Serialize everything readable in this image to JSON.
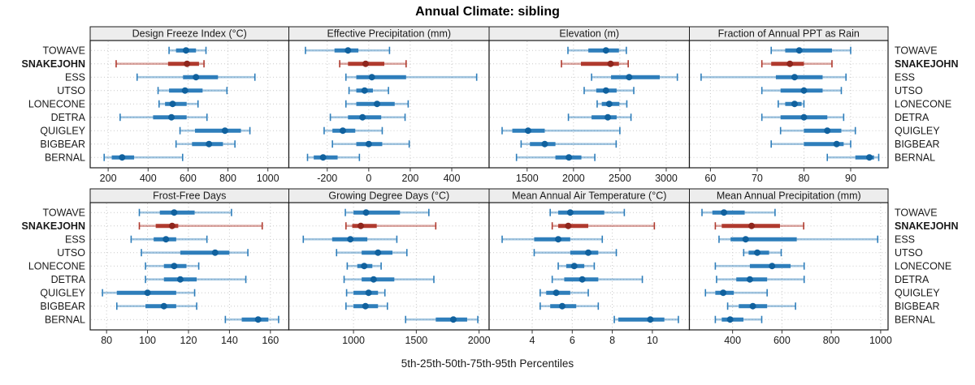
{
  "title": "Annual Climate: sibling",
  "caption": "5th-25th-50th-75th-95th Percentiles",
  "colors": {
    "site_line": "#2E7EBB",
    "site_range": "#2E7EBB",
    "site_dot": "#10619E",
    "highlight_line": "#B03A2E",
    "highlight_range": "#B03A2E",
    "highlight_dot": "#8F261D",
    "grid": "#C9C9C9",
    "panel_header_bg": "#EDEDED",
    "border": "#1A1A1A"
  },
  "chart_data": {
    "type": "interval-dotplot",
    "percentile_labels": [
      5,
      25,
      50,
      75,
      95
    ],
    "sites": [
      "TOWAVE",
      "SNAKEJOHN",
      "ESS",
      "UTSO",
      "LONECONE",
      "DETRA",
      "QUIGLEY",
      "BIGBEAR",
      "BERNAL"
    ],
    "highlight_site": "SNAKEJOHN",
    "legend_position": "none",
    "grid": "dotted",
    "panels": [
      {
        "title": "Design Freeze Index (°C)",
        "band": 0,
        "ticks": [
          200,
          400,
          600,
          800,
          1000
        ],
        "domain": [
          110,
          1105
        ],
        "values": [
          [
            505,
            540,
            590,
            640,
            690
          ],
          [
            240,
            500,
            595,
            655,
            680
          ],
          [
            345,
            575,
            640,
            750,
            935
          ],
          [
            450,
            505,
            585,
            673,
            795
          ],
          [
            455,
            485,
            523,
            593,
            650
          ],
          [
            260,
            425,
            517,
            593,
            695
          ],
          [
            560,
            635,
            785,
            865,
            910
          ],
          [
            540,
            620,
            705,
            775,
            835
          ],
          [
            180,
            218,
            270,
            330,
            573
          ]
        ]
      },
      {
        "title": "Effective Precipitation (mm)",
        "band": 0,
        "ticks": [
          -200,
          0,
          200,
          400
        ],
        "domain": [
          -385,
          580
        ],
        "values": [
          [
            -305,
            -165,
            -100,
            -50,
            100
          ],
          [
            -140,
            -100,
            -15,
            75,
            180
          ],
          [
            -110,
            -60,
            15,
            180,
            520
          ],
          [
            -95,
            -60,
            -20,
            20,
            95
          ],
          [
            -110,
            -60,
            40,
            125,
            190
          ],
          [
            -185,
            -100,
            -30,
            60,
            175
          ],
          [
            -215,
            -175,
            -125,
            -65,
            65
          ],
          [
            -175,
            -60,
            0,
            65,
            195
          ],
          [
            -295,
            -265,
            -220,
            -150,
            -45
          ]
        ]
      },
      {
        "title": "Elevation (m)",
        "band": 0,
        "ticks": [
          1500,
          2000,
          2500,
          3000
        ],
        "domain": [
          1090,
          3250
        ],
        "values": [
          [
            1940,
            2160,
            2350,
            2490,
            2570
          ],
          [
            1870,
            2080,
            2400,
            2490,
            2590
          ],
          [
            2195,
            2405,
            2600,
            2930,
            3120
          ],
          [
            2115,
            2245,
            2350,
            2465,
            2650
          ],
          [
            2255,
            2305,
            2385,
            2495,
            2575
          ],
          [
            1945,
            2195,
            2370,
            2465,
            2620
          ],
          [
            1230,
            1340,
            1510,
            1690,
            2500
          ],
          [
            1435,
            1530,
            1690,
            1805,
            2460
          ],
          [
            1385,
            1805,
            1950,
            2085,
            2230
          ]
        ]
      },
      {
        "title": "Fraction of Annual PPT as Rain",
        "band": 0,
        "ticks": [
          60,
          70,
          80,
          90
        ],
        "domain": [
          55.5,
          98
        ],
        "values": [
          [
            73,
            76,
            79,
            86,
            90
          ],
          [
            71,
            73,
            77,
            80,
            86
          ],
          [
            58,
            74,
            78,
            84,
            89
          ],
          [
            71,
            75,
            80,
            84,
            88
          ],
          [
            74.5,
            76,
            78,
            79.5,
            80
          ],
          [
            71,
            75,
            80,
            85,
            88.5
          ],
          [
            75,
            80,
            85,
            88,
            91
          ],
          [
            73,
            80,
            87,
            88.5,
            90
          ],
          [
            85,
            91,
            94,
            95,
            96
          ]
        ]
      },
      {
        "title": "Frost-Free Days",
        "band": 1,
        "ticks": [
          80,
          100,
          120,
          140,
          160
        ],
        "domain": [
          72,
          169
        ],
        "values": [
          [
            96,
            106,
            113,
            123,
            141
          ],
          [
            96,
            104,
            112,
            115,
            156
          ],
          [
            92,
            103,
            109,
            114,
            129
          ],
          [
            97,
            116,
            133,
            140,
            149
          ],
          [
            99,
            108,
            113,
            119,
            125
          ],
          [
            99,
            108,
            116,
            124,
            148
          ],
          [
            78,
            85,
            100,
            114,
            123
          ],
          [
            85,
            99,
            108,
            114,
            124
          ],
          [
            138,
            146,
            154,
            159,
            164
          ]
        ]
      },
      {
        "title": "Growing Degree Days (°C)",
        "band": 1,
        "ticks": [
          1000,
          1500,
          2000
        ],
        "domain": [
          485,
          2080
        ],
        "values": [
          [
            935,
            1000,
            1100,
            1370,
            1600
          ],
          [
            940,
            990,
            1058,
            1185,
            1655
          ],
          [
            600,
            830,
            975,
            1110,
            1345
          ],
          [
            865,
            1065,
            1195,
            1310,
            1425
          ],
          [
            950,
            1030,
            1085,
            1150,
            1220
          ],
          [
            925,
            1065,
            1160,
            1325,
            1640
          ],
          [
            945,
            1000,
            1120,
            1195,
            1250
          ],
          [
            940,
            1000,
            1095,
            1195,
            1270
          ],
          [
            1415,
            1655,
            1795,
            1905,
            1990
          ]
        ]
      },
      {
        "title": "Mean Annual Air Temperature (°C)",
        "band": 1,
        "ticks": [
          4,
          6,
          8,
          10
        ],
        "domain": [
          1.85,
          11.85
        ],
        "values": [
          [
            4.9,
            5.3,
            5.9,
            7.6,
            8.6
          ],
          [
            5.0,
            5.3,
            5.8,
            6.8,
            10.1
          ],
          [
            2.5,
            4.1,
            5.3,
            5.9,
            7.5
          ],
          [
            4.1,
            5.9,
            6.8,
            7.3,
            8.2
          ],
          [
            5.3,
            5.7,
            6.1,
            6.6,
            7.1
          ],
          [
            5.0,
            5.6,
            6.5,
            7.3,
            9.5
          ],
          [
            4.4,
            4.7,
            5.2,
            5.9,
            6.8
          ],
          [
            4.4,
            4.9,
            5.5,
            6.2,
            7.3
          ],
          [
            8.1,
            8.3,
            9.9,
            10.6,
            11.3
          ]
        ]
      },
      {
        "title": "Mean Annual Precipitation (mm)",
        "band": 1,
        "ticks": [
          400,
          600,
          800,
          1000
        ],
        "domain": [
          225,
          1030
        ],
        "values": [
          [
            276,
            318,
            365,
            449,
            572
          ],
          [
            330,
            356,
            477,
            592,
            688
          ],
          [
            345,
            392,
            453,
            660,
            988
          ],
          [
            445,
            465,
            500,
            548,
            597
          ],
          [
            330,
            470,
            560,
            635,
            690
          ],
          [
            335,
            415,
            470,
            540,
            690
          ],
          [
            290,
            330,
            362,
            405,
            540
          ],
          [
            380,
            425,
            482,
            540,
            655
          ],
          [
            330,
            356,
            390,
            444,
            518
          ]
        ]
      }
    ]
  }
}
